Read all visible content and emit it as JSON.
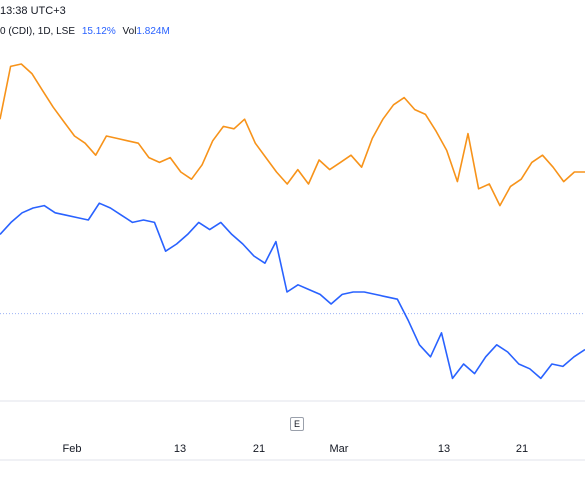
{
  "header": {
    "time_text": "13:38 UTC+3"
  },
  "legend": {
    "symbol_text": "0 (CDI), 1D, LSE",
    "change_pct": "15.12%",
    "vol_label": "Vol",
    "vol_value": "1.824M"
  },
  "event_marker": {
    "label": "E"
  },
  "colors": {
    "orange_series": "#f7931a",
    "blue_series": "#2962ff",
    "price_line": "#9db2f5",
    "axis_line": "#e0e3eb"
  },
  "chart_data": {
    "type": "line",
    "x_ticks": [
      "Feb",
      "13",
      "21",
      "Mar",
      "13",
      "21"
    ],
    "series": [
      {
        "color": "#f7931a",
        "values": [
          92,
          114,
          115,
          111,
          104,
          97,
          91,
          85,
          82,
          77,
          85,
          84,
          83,
          82,
          76,
          74,
          76,
          70,
          67,
          73,
          83,
          89,
          88,
          92,
          82,
          76,
          70,
          65,
          71,
          65,
          75,
          71,
          74,
          77,
          72,
          84,
          92,
          98,
          101,
          96,
          94,
          87,
          79,
          66,
          86,
          63,
          65,
          56,
          64,
          67,
          74,
          77,
          72,
          66,
          70,
          70
        ]
      },
      {
        "color": "#2962ff",
        "values": [
          44,
          49,
          53,
          55,
          56,
          53,
          52,
          51,
          50,
          57,
          55,
          52,
          49,
          50,
          49,
          37,
          40,
          44,
          49,
          46,
          49,
          44,
          40,
          35,
          32,
          41,
          20,
          23,
          21,
          19,
          15,
          19,
          20,
          20,
          19,
          18,
          17,
          8,
          -2,
          -7,
          3,
          -16,
          -10,
          -14,
          -7,
          -2,
          -5,
          -10,
          -12,
          -16,
          -10,
          -11,
          -7,
          -4
        ]
      }
    ],
    "price_line_level": 11
  }
}
